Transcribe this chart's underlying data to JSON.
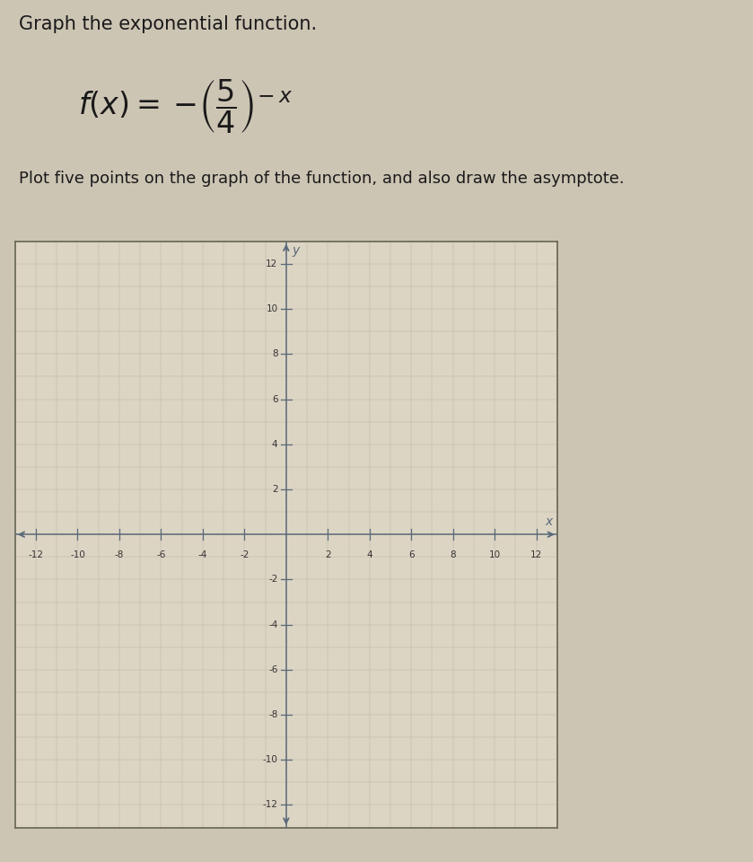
{
  "title_text": "Graph the exponential function.",
  "subtitle_text": "Plot five points on the graph of the function, and also draw the asymptote.",
  "xlim": [
    -13,
    13
  ],
  "ylim": [
    -13,
    13
  ],
  "xticks": [
    -12,
    -10,
    -8,
    -6,
    -4,
    -2,
    2,
    4,
    6,
    8,
    10,
    12
  ],
  "yticks": [
    -12,
    -10,
    -8,
    -6,
    -4,
    -2,
    2,
    4,
    6,
    8,
    10,
    12
  ],
  "background_color": "#cdc5b4",
  "plot_bg_color": "#ddd5c4",
  "grid_color_major": "#b8b0a0",
  "grid_color_minor": "#ccc4b4",
  "axis_color": "#5a6a7a",
  "fig_width": 8.39,
  "fig_height": 9.6,
  "dpi": 100
}
